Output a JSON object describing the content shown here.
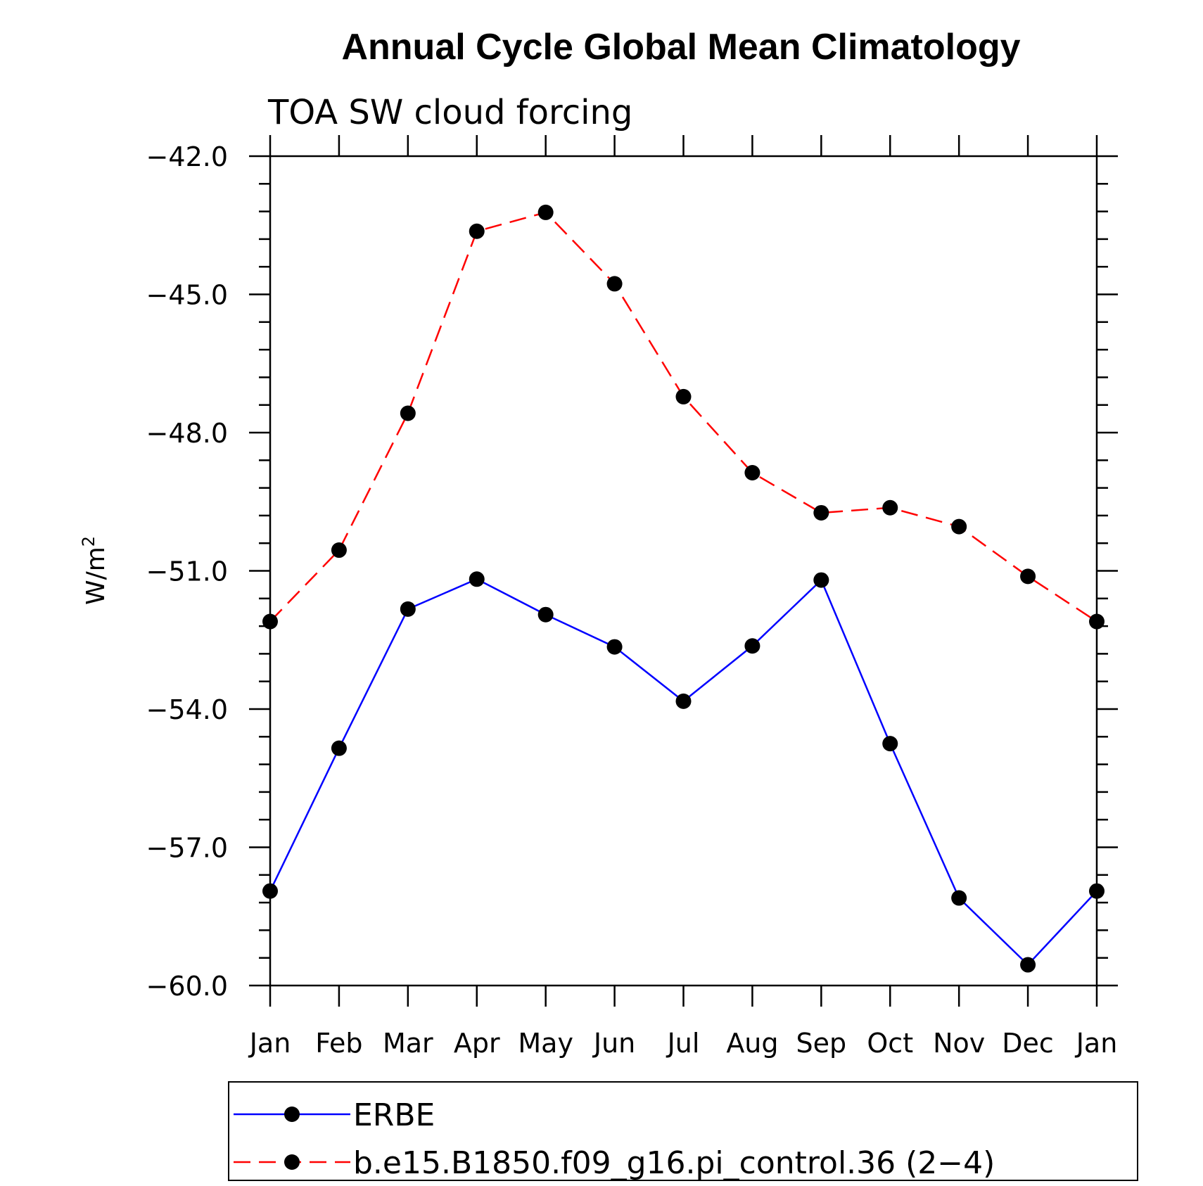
{
  "chart_data": {
    "type": "line",
    "title": "Annual Cycle Global Mean Climatology",
    "subtitle": "TOA SW cloud forcing",
    "ylabel": "W/m",
    "ylabel_superscript": "2",
    "ylim": [
      -60.0,
      -42.0
    ],
    "yticks": [
      -42.0,
      -45.0,
      -48.0,
      -51.0,
      -54.0,
      -57.0,
      -60.0
    ],
    "ytick_labels": [
      "−42.0",
      "−45.0",
      "−48.0",
      "−51.0",
      "−54.0",
      "−57.0",
      "−60.0"
    ],
    "categories": [
      "Jan",
      "Feb",
      "Mar",
      "Apr",
      "May",
      "Jun",
      "Jul",
      "Aug",
      "Sep",
      "Oct",
      "Nov",
      "Dec",
      "Jan"
    ],
    "grid": false,
    "legend_position": "bottom",
    "series": [
      {
        "name": "ERBE",
        "color": "#0000ff",
        "line_style": "solid",
        "values": [
          -57.95,
          -54.85,
          -51.83,
          -51.18,
          -51.95,
          -52.65,
          -53.83,
          -52.63,
          -51.2,
          -54.75,
          -58.1,
          -59.55,
          -57.95
        ]
      },
      {
        "name": "b.e15.B1850.f09_g16.pi_control.36 (2−4)",
        "color": "#ff0000",
        "line_style": "dashed",
        "values": [
          -52.1,
          -50.55,
          -47.58,
          -43.63,
          -43.22,
          -44.77,
          -47.22,
          -48.87,
          -49.74,
          -49.63,
          -50.04,
          -51.12,
          -52.1
        ]
      }
    ]
  }
}
